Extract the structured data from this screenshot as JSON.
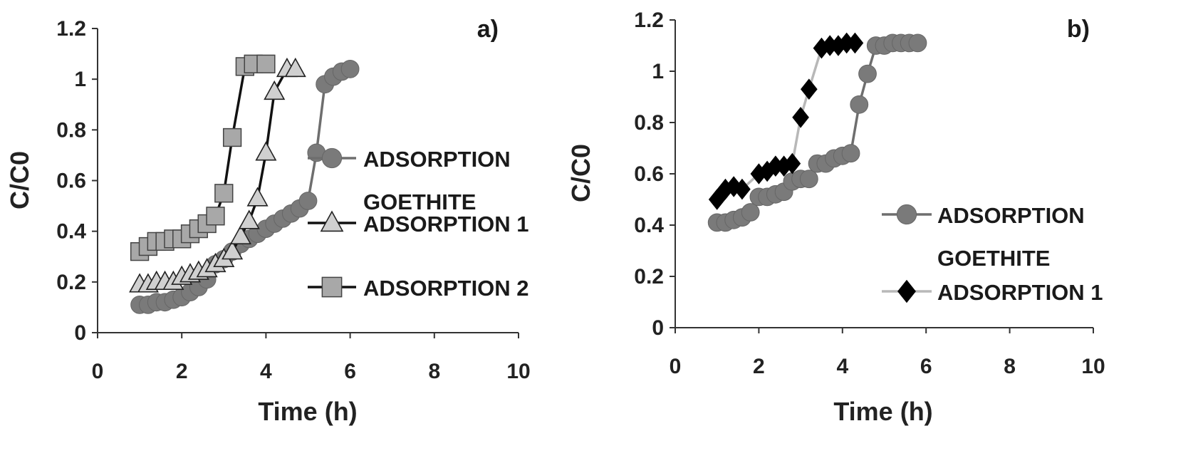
{
  "chart_data": [
    {
      "type": "line",
      "panel_label": "a)",
      "xlabel": "Time (h)",
      "ylabel": "C/C0",
      "xlim": [
        0,
        10
      ],
      "ylim": [
        0,
        1.2
      ],
      "x_ticks": [
        "0",
        "2",
        "4",
        "6",
        "8",
        "10"
      ],
      "y_ticks": [
        "0",
        "0.2",
        "0.4",
        "0.6",
        "0.8",
        "1",
        "1.2"
      ],
      "grid": false,
      "legend_position": "right",
      "series": [
        {
          "name": "ADSORPTION GOETHITE",
          "legend_lines": [
            "ADSORPTION",
            "GOETHITE"
          ],
          "marker": "circle",
          "line_color": "#6e6e6e",
          "marker_color": "#7a7a7a",
          "points": [
            [
              1.0,
              0.11
            ],
            [
              1.2,
              0.11
            ],
            [
              1.4,
              0.12
            ],
            [
              1.6,
              0.12
            ],
            [
              1.8,
              0.13
            ],
            [
              2.0,
              0.14
            ],
            [
              2.2,
              0.16
            ],
            [
              2.4,
              0.18
            ],
            [
              2.6,
              0.21
            ],
            [
              2.8,
              0.27
            ],
            [
              3.0,
              0.29
            ],
            [
              3.2,
              0.32
            ],
            [
              3.4,
              0.35
            ],
            [
              3.6,
              0.37
            ],
            [
              3.8,
              0.39
            ],
            [
              4.0,
              0.41
            ],
            [
              4.2,
              0.43
            ],
            [
              4.4,
              0.45
            ],
            [
              4.6,
              0.47
            ],
            [
              4.8,
              0.49
            ],
            [
              5.0,
              0.52
            ],
            [
              5.2,
              0.71
            ],
            [
              5.4,
              0.98
            ],
            [
              5.6,
              1.01
            ],
            [
              5.8,
              1.03
            ],
            [
              6.0,
              1.04
            ]
          ]
        },
        {
          "name": "ADSORPTION 1",
          "legend_lines": [
            "ADSORPTION 1"
          ],
          "marker": "triangle",
          "line_color": "#111111",
          "marker_color": "#d0d0d0",
          "points": [
            [
              1.0,
              0.19
            ],
            [
              1.2,
              0.19
            ],
            [
              1.4,
              0.2
            ],
            [
              1.6,
              0.2
            ],
            [
              1.8,
              0.2
            ],
            [
              2.0,
              0.22
            ],
            [
              2.2,
              0.23
            ],
            [
              2.4,
              0.24
            ],
            [
              2.6,
              0.25
            ],
            [
              2.8,
              0.27
            ],
            [
              3.0,
              0.29
            ],
            [
              3.2,
              0.32
            ],
            [
              3.4,
              0.38
            ],
            [
              3.6,
              0.44
            ],
            [
              3.8,
              0.53
            ],
            [
              4.0,
              0.71
            ],
            [
              4.2,
              0.95
            ],
            [
              4.5,
              1.04
            ],
            [
              4.7,
              1.04
            ]
          ]
        },
        {
          "name": "ADSORPTION 2",
          "legend_lines": [
            "ADSORPTION 2"
          ],
          "marker": "square",
          "line_color": "#111111",
          "marker_color": "#a8a8a8",
          "points": [
            [
              1.0,
              0.32
            ],
            [
              1.2,
              0.34
            ],
            [
              1.4,
              0.36
            ],
            [
              1.6,
              0.36
            ],
            [
              1.8,
              0.37
            ],
            [
              2.0,
              0.37
            ],
            [
              2.2,
              0.39
            ],
            [
              2.4,
              0.41
            ],
            [
              2.6,
              0.43
            ],
            [
              2.8,
              0.46
            ],
            [
              3.0,
              0.55
            ],
            [
              3.2,
              0.77
            ],
            [
              3.5,
              1.05
            ],
            [
              3.7,
              1.06
            ],
            [
              4.0,
              1.06
            ]
          ]
        }
      ]
    },
    {
      "type": "line",
      "panel_label": "b)",
      "xlabel": "Time (h)",
      "ylabel": "C/C0",
      "xlim": [
        0,
        10
      ],
      "ylim": [
        0,
        1.2
      ],
      "x_ticks": [
        "0",
        "2",
        "4",
        "6",
        "8",
        "10"
      ],
      "y_ticks": [
        "0",
        "0.2",
        "0.4",
        "0.6",
        "0.8",
        "1",
        "1.2"
      ],
      "grid": false,
      "legend_position": "bottom-right",
      "series": [
        {
          "name": "ADSORPTION GOETHITE",
          "legend_lines": [
            "ADSORPTION",
            "GOETHITE"
          ],
          "marker": "circle",
          "line_color": "#6e6e6e",
          "marker_color": "#7a7a7a",
          "points": [
            [
              1.0,
              0.41
            ],
            [
              1.2,
              0.41
            ],
            [
              1.4,
              0.42
            ],
            [
              1.6,
              0.43
            ],
            [
              1.8,
              0.45
            ],
            [
              2.0,
              0.51
            ],
            [
              2.2,
              0.51
            ],
            [
              2.4,
              0.52
            ],
            [
              2.6,
              0.53
            ],
            [
              2.8,
              0.57
            ],
            [
              3.0,
              0.58
            ],
            [
              3.2,
              0.58
            ],
            [
              3.4,
              0.64
            ],
            [
              3.6,
              0.64
            ],
            [
              3.8,
              0.66
            ],
            [
              4.0,
              0.67
            ],
            [
              4.2,
              0.68
            ],
            [
              4.4,
              0.87
            ],
            [
              4.6,
              0.99
            ],
            [
              4.8,
              1.1
            ],
            [
              5.0,
              1.1
            ],
            [
              5.2,
              1.11
            ],
            [
              5.4,
              1.11
            ],
            [
              5.6,
              1.11
            ],
            [
              5.8,
              1.11
            ]
          ]
        },
        {
          "name": "ADSORPTION 1",
          "legend_lines": [
            "ADSORPTION 1"
          ],
          "marker": "diamond",
          "line_color": "#b8b8b8",
          "marker_color": "#000000",
          "points": [
            [
              1.0,
              0.5
            ],
            [
              1.2,
              0.54
            ],
            [
              1.4,
              0.55
            ],
            [
              1.6,
              0.54
            ],
            [
              2.0,
              0.6
            ],
            [
              2.2,
              0.61
            ],
            [
              2.4,
              0.63
            ],
            [
              2.6,
              0.63
            ],
            [
              2.8,
              0.64
            ],
            [
              3.0,
              0.82
            ],
            [
              3.2,
              0.93
            ],
            [
              3.5,
              1.09
            ],
            [
              3.7,
              1.1
            ],
            [
              3.9,
              1.1
            ],
            [
              4.1,
              1.11
            ],
            [
              4.3,
              1.11
            ]
          ]
        }
      ]
    }
  ]
}
